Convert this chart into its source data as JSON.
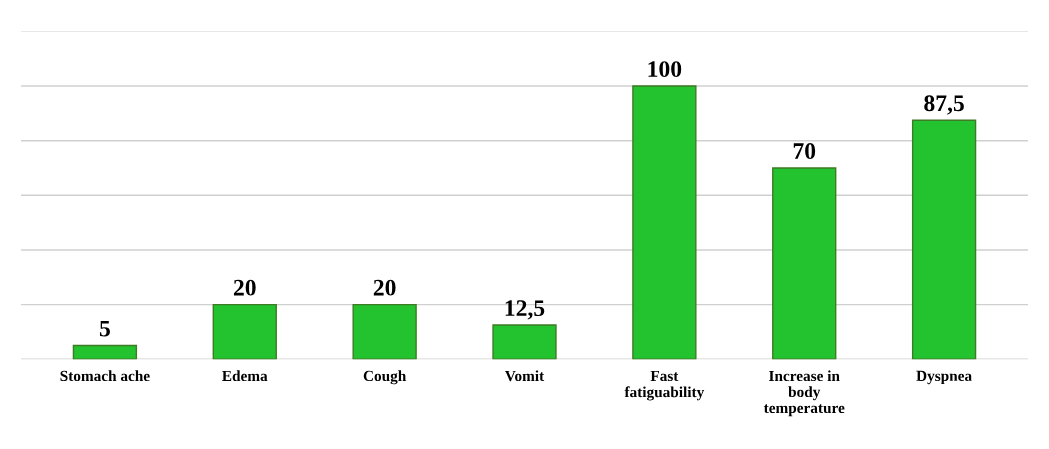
{
  "chart_data": {
    "type": "bar",
    "categories": [
      "Stomach ache",
      "Edema",
      "Cough",
      "Vomit",
      "Fast fatiguability",
      "Increase in body temperature",
      "Dyspnea"
    ],
    "values": [
      5,
      20,
      20,
      12.5,
      100,
      70,
      87.5
    ],
    "value_labels": [
      "5",
      "20",
      "20",
      "12,5",
      "100",
      "70",
      "87,5"
    ],
    "color": "#22c32e",
    "ylim": [
      0,
      120
    ],
    "yticks": [
      {
        "value": 0,
        "label": null
      },
      {
        "value": 20,
        "label": null
      },
      {
        "value": 40,
        "label": null
      },
      {
        "value": 60,
        "label": null
      },
      {
        "value": 80,
        "label": null
      },
      {
        "value": 100,
        "label": null
      },
      {
        "value": 120,
        "label": null
      }
    ],
    "tick_labels": "x",
    "grid": "y"
  }
}
